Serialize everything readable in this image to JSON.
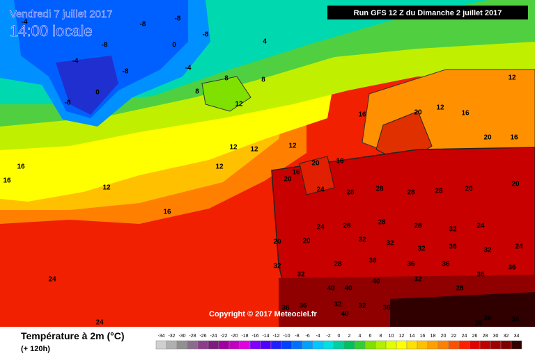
{
  "header": {
    "date": "Vendredi 7 juillet 2017",
    "time": "14:00 locale",
    "run": "Run GFS 12 Z du Dimanche 2 juillet 2017"
  },
  "copyright": "Copyright © 2017 Meteociel.fr",
  "legend": {
    "title": "Température à 2m (°C)",
    "subtitle": "(+ 120h)",
    "scale": [
      -34,
      -32,
      -30,
      -28,
      -26,
      -24,
      -22,
      -20,
      -18,
      -16,
      -14,
      -12,
      -10,
      -8,
      -6,
      -4,
      -2,
      0,
      2,
      4,
      6,
      8,
      10,
      12,
      14,
      16,
      18,
      20,
      22,
      24,
      26,
      28,
      30,
      32,
      34
    ],
    "colors": [
      "#d0d0d0",
      "#b0b0b0",
      "#909090",
      "#8c6c8c",
      "#8c3c8c",
      "#7c1c7c",
      "#a000a0",
      "#c000c0",
      "#e000e0",
      "#8000ff",
      "#5000ff",
      "#2020ff",
      "#0040ff",
      "#0070ff",
      "#00a0ff",
      "#00c8ff",
      "#00e0e0",
      "#00d0a0",
      "#00c060",
      "#30d030",
      "#80e000",
      "#b0f000",
      "#e0ff00",
      "#ffff00",
      "#ffe000",
      "#ffc000",
      "#ffa000",
      "#ff8000",
      "#ff5000",
      "#ff2000",
      "#e00000",
      "#c00000",
      "#a00000",
      "#800000",
      "#300000"
    ]
  },
  "map_labels": [
    -8,
    -8,
    -8,
    -4,
    -8,
    0,
    -8,
    0,
    -4,
    -8,
    4,
    8,
    8,
    12,
    8,
    16,
    20,
    12,
    16,
    20,
    16,
    12,
    12,
    12,
    12,
    12,
    16,
    20,
    16,
    20,
    12,
    16,
    24,
    28,
    28,
    28,
    28,
    20,
    20,
    24,
    28,
    28,
    28,
    32,
    24,
    20,
    20,
    32,
    32,
    32,
    36,
    32,
    24,
    32,
    32,
    28,
    36,
    36,
    36,
    36,
    36,
    40,
    40,
    40,
    32,
    28,
    36,
    36,
    32,
    32,
    36,
    40,
    36,
    36,
    36,
    24,
    24,
    16,
    16,
    -4
  ]
}
